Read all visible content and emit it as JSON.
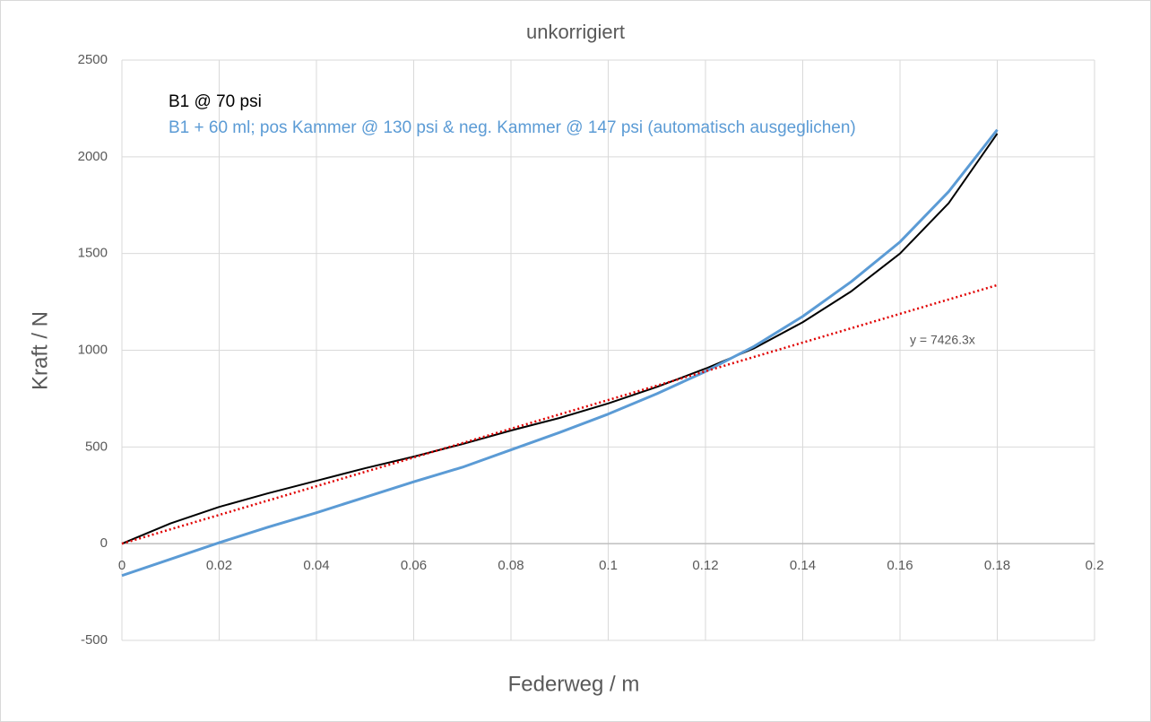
{
  "chart_data": {
    "type": "line",
    "title": "unkorrigiert",
    "x_label": "Federweg / m",
    "y_label": "Kraft / N",
    "x": [
      0,
      0.01,
      0.02,
      0.03,
      0.04,
      0.05,
      0.06,
      0.07,
      0.08,
      0.09,
      0.1,
      0.11,
      0.12,
      0.13,
      0.14,
      0.15,
      0.16,
      0.17,
      0.18
    ],
    "series": [
      {
        "name": "B1 @ 70 psi",
        "color": "#000000",
        "width": 2,
        "values": [
          0,
          105,
          190,
          260,
          325,
          390,
          450,
          515,
          585,
          650,
          725,
          810,
          905,
          1010,
          1145,
          1305,
          1500,
          1760,
          2120
        ]
      },
      {
        "name": "B1 + 60 ml; pos Kammer @ 130 psi & neg. Kammer @ 147 psi (automatisch ausgeglichen)",
        "color": "#5b9bd5",
        "width": 3,
        "values": [
          -165,
          -80,
          5,
          85,
          160,
          240,
          320,
          395,
          485,
          575,
          670,
          775,
          890,
          1020,
          1175,
          1355,
          1560,
          1820,
          2140
        ]
      }
    ],
    "trendline": {
      "label": "y = 7426.3x",
      "slope": 7426.3,
      "xrange": [
        0,
        0.18
      ],
      "color": "#e00000"
    },
    "xlim": [
      0,
      0.2
    ],
    "xticks": [
      0,
      0.02,
      0.04,
      0.06,
      0.08,
      0.1,
      0.12,
      0.14,
      0.16,
      0.18,
      0.2
    ],
    "ylim": [
      -500,
      2500
    ],
    "yticks": [
      -500,
      0,
      500,
      1000,
      1500,
      2000,
      2500
    ],
    "grid": true,
    "legend": "top-left"
  }
}
